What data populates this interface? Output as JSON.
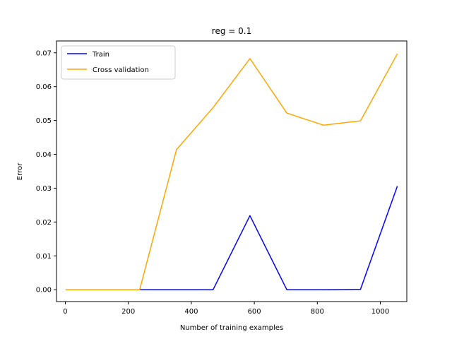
{
  "chart_data": {
    "type": "line",
    "title": "reg = 0.1",
    "xlabel": "Number of training examples",
    "ylabel": "Error",
    "xlim": [
      -28,
      1084
    ],
    "ylim": [
      -0.0035,
      0.0735
    ],
    "xticks": [
      0,
      200,
      400,
      600,
      800,
      1000
    ],
    "yticks": [
      0.0,
      0.01,
      0.02,
      0.03,
      0.04,
      0.05,
      0.06,
      0.07
    ],
    "yticks_labels": [
      "0.00",
      "0.01",
      "0.02",
      "0.03",
      "0.04",
      "0.05",
      "0.06",
      "0.07"
    ],
    "grid": false,
    "legend_position": "upper-left",
    "series": [
      {
        "name": "Train",
        "color": "#0000ff",
        "x": [
          1,
          118,
          236,
          353,
          469,
          586,
          703,
          820,
          937,
          1054
        ],
        "y": [
          0.0,
          0.0,
          0.0,
          0.0,
          0.0,
          0.0219,
          0.0,
          0.0,
          0.0001,
          0.0306
        ]
      },
      {
        "name": "Cross validation",
        "color": "#ffa500",
        "x": [
          1,
          118,
          236,
          353,
          469,
          586,
          703,
          820,
          937,
          1054
        ],
        "y": [
          0.0,
          0.0,
          0.0,
          0.0414,
          0.0538,
          0.0683,
          0.0522,
          0.0486,
          0.0499,
          0.0697
        ]
      }
    ]
  }
}
